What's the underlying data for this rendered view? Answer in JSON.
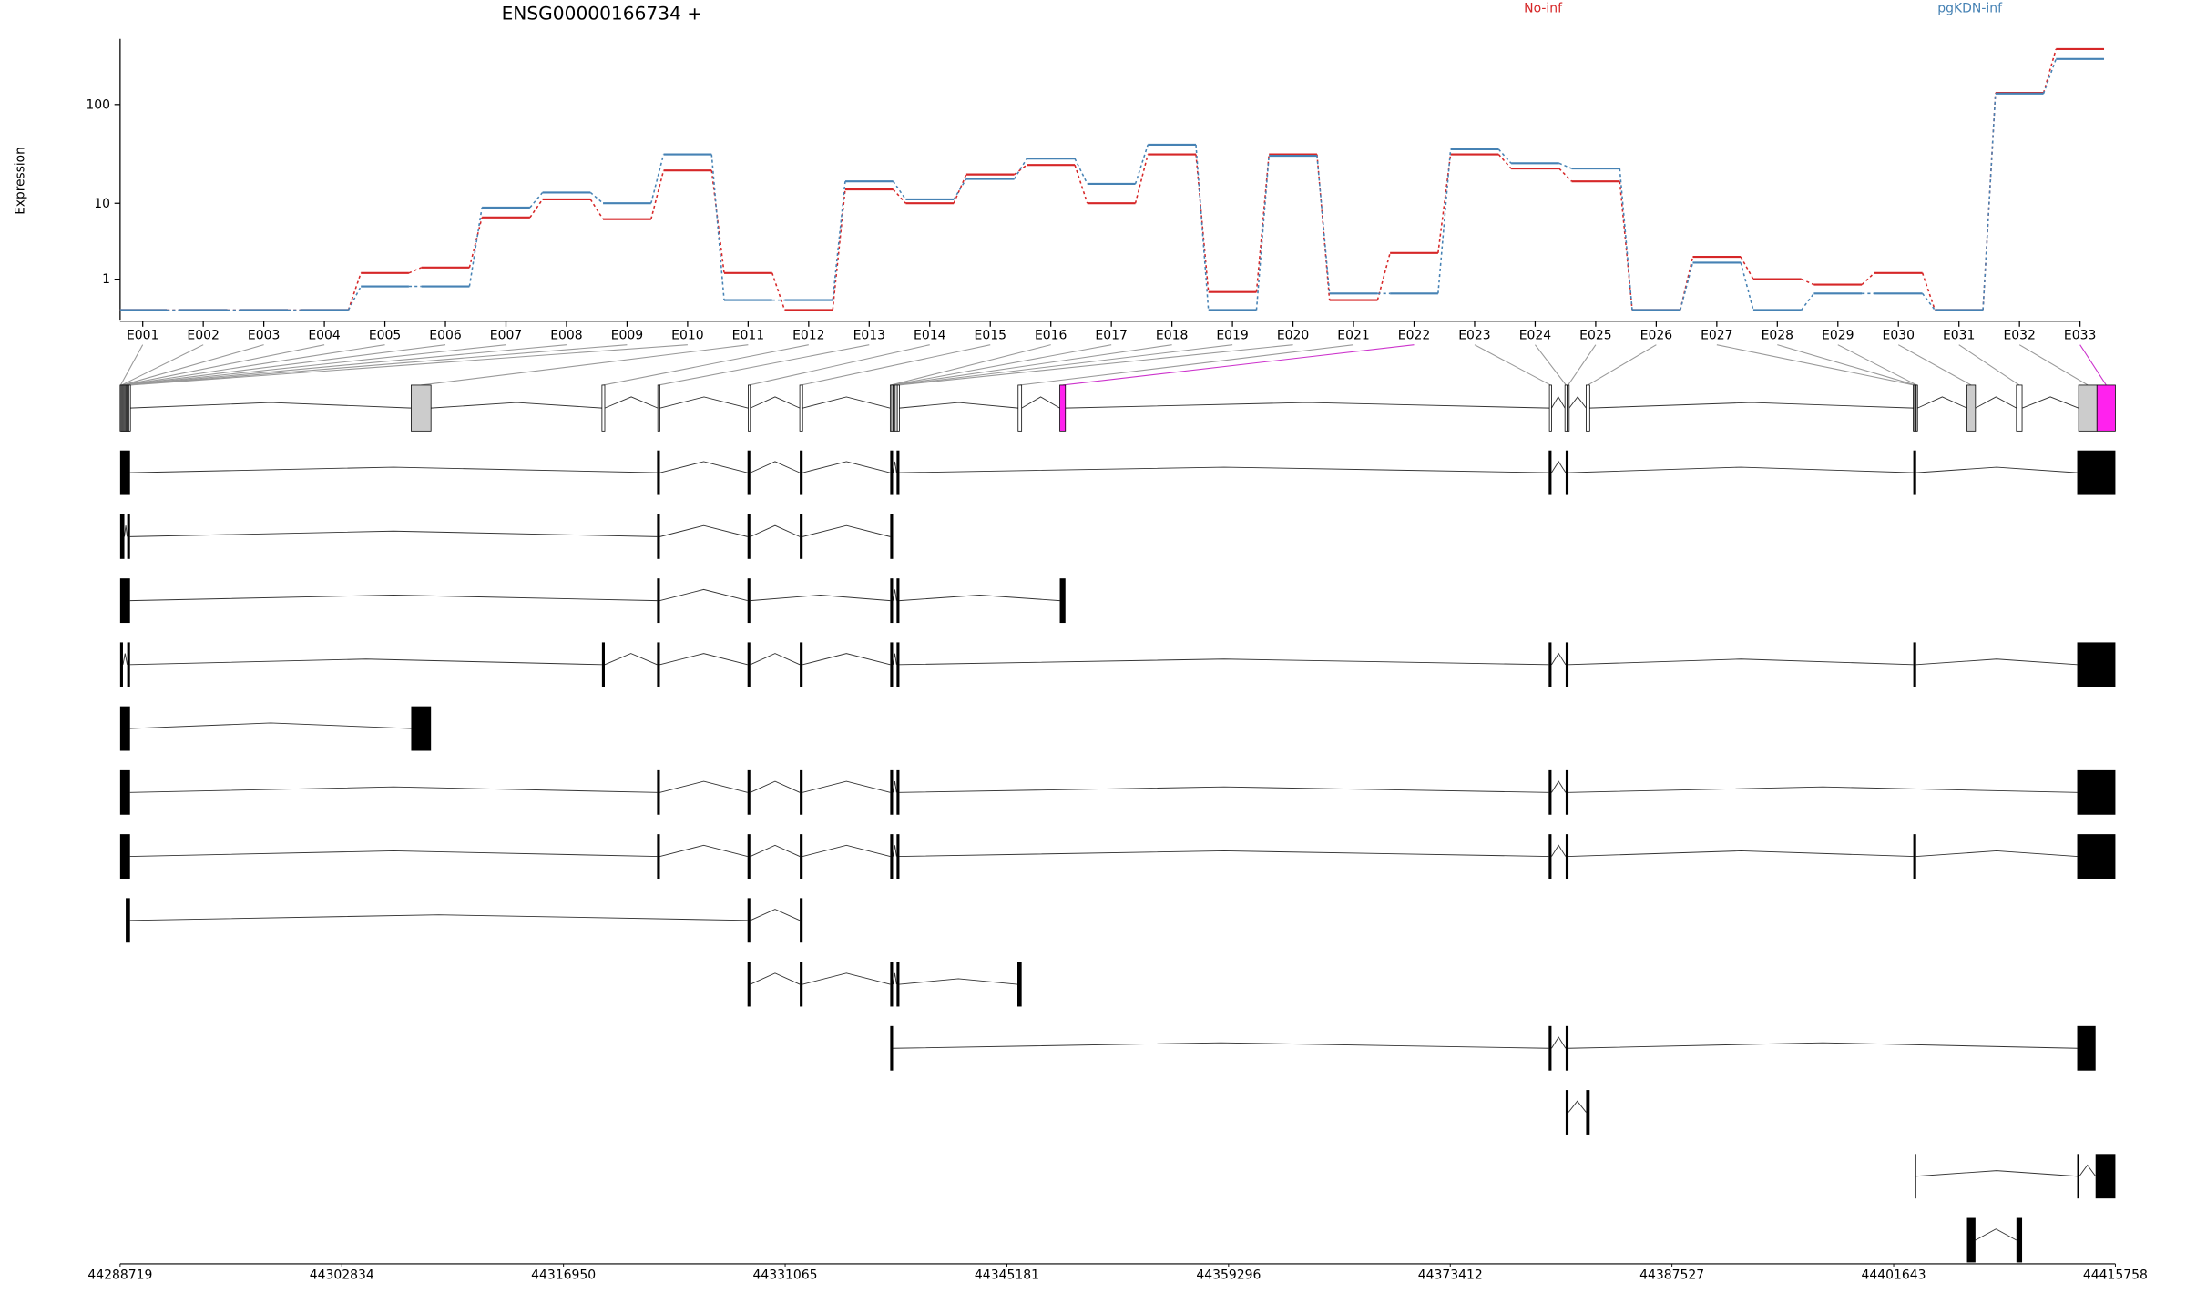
{
  "chart_data": {
    "type": "line",
    "title": "ENSG00000166734 +",
    "y_label": "Expression",
    "categories": [
      "E001",
      "E002",
      "E003",
      "E004",
      "E005",
      "E006",
      "E007",
      "E008",
      "E009",
      "E010",
      "E011",
      "E012",
      "E013",
      "E014",
      "E015",
      "E016",
      "E017",
      "E018",
      "E019",
      "E020",
      "E021",
      "E022",
      "E023",
      "E024",
      "E025",
      "E026",
      "E027",
      "E028",
      "E029",
      "E030",
      "E031",
      "E032",
      "E033"
    ],
    "series": [
      {
        "name": "No-inf",
        "color": "#d62728",
        "values": [
          0,
          0,
          0,
          0,
          1.3,
          1.6,
          7,
          11,
          6.7,
          22,
          1.3,
          0,
          14,
          10,
          20,
          25,
          10,
          32,
          0.5,
          32,
          0.25,
          2.6,
          32,
          23,
          17,
          0,
          2.3,
          1,
          0.77,
          1.3,
          0,
          130,
          350
        ]
      },
      {
        "name": "pgKDN-inf",
        "color": "#4682b4",
        "values": [
          0,
          0,
          0,
          0,
          0.7,
          0.7,
          9,
          13,
          10,
          32,
          0.25,
          0.25,
          17,
          11,
          18,
          29,
          16,
          40,
          0,
          31,
          0.45,
          0.45,
          36,
          26,
          23,
          0,
          1.9,
          0,
          0.45,
          0.45,
          0,
          128,
          280
        ]
      }
    ],
    "ylim": [
      0,
      440
    ],
    "yscale": "log1p",
    "yticks": [
      1,
      10,
      100
    ]
  },
  "genomic_axis": {
    "xlim": [
      44288719,
      44415758
    ],
    "xticks": [
      44288719,
      44302834,
      44316950,
      44331065,
      44345181,
      44359296,
      44373412,
      44387527,
      44401643,
      44415758
    ]
  }
}
